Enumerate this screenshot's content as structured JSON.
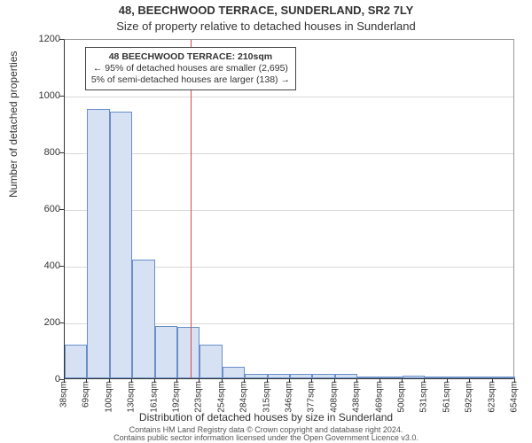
{
  "title": "48, BEECHWOOD TERRACE, SUNDERLAND, SR2 7LY",
  "subtitle": "Size of property relative to detached houses in Sunderland",
  "ylabel": "Number of detached properties",
  "xlabel": "Distribution of detached houses by size in Sunderland",
  "footer": "Contains HM Land Registry data © Crown copyright and database right 2024.\nContains public sector information licensed under the Open Government Licence v3.0.",
  "chart": {
    "type": "histogram",
    "background_color": "#ffffff",
    "grid_color": "#d9d9d9",
    "axis_color": "#333333",
    "bar_fill": "#d6e2f3",
    "bar_border": "#6a8fc7",
    "refline_color": "#d94a4a",
    "ylim": [
      0,
      1200
    ],
    "ytick_step": 200,
    "yticks": [
      0,
      200,
      400,
      600,
      800,
      1000,
      1200
    ],
    "xticks": [
      "38sqm",
      "69sqm",
      "100sqm",
      "130sqm",
      "161sqm",
      "192sqm",
      "223sqm",
      "254sqm",
      "284sqm",
      "315sqm",
      "346sqm",
      "377sqm",
      "408sqm",
      "438sqm",
      "469sqm",
      "500sqm",
      "531sqm",
      "561sqm",
      "592sqm",
      "623sqm",
      "654sqm"
    ],
    "values": [
      120,
      950,
      940,
      420,
      185,
      180,
      120,
      40,
      15,
      15,
      15,
      15,
      15,
      3,
      3,
      10,
      3,
      3,
      3,
      3
    ],
    "ref_value": 210,
    "x_start": 38,
    "x_end": 654,
    "annotation": {
      "l1": "48 BEECHWOOD TERRACE: 210sqm",
      "l2": "← 95% of detached houses are smaller (2,695)",
      "l3": "5% of semi-detached houses are larger (138) →"
    },
    "tick_fontsize": 11,
    "label_fontsize": 12,
    "title_fontsize": 13
  }
}
